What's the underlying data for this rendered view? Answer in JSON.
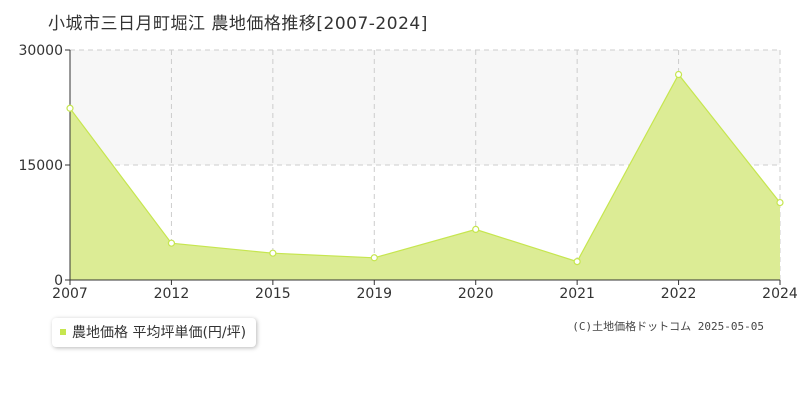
{
  "title": "小城市三日月町堀江 農地価格推移[2007-2024]",
  "legend": {
    "label": "農地価格 平均坪単価(円/坪)"
  },
  "copyright": "(C)土地価格ドットコム 2025-05-05",
  "colors": {
    "area_fill": "#dcec95",
    "line": "#c6e64f",
    "band": "#f7f7f7",
    "grid": "#cccccc",
    "axis": "#333333",
    "point_fill": "#ffffff"
  },
  "chart_data": {
    "type": "area",
    "categories": [
      "2007",
      "2012",
      "2015",
      "2019",
      "2020",
      "2021",
      "2022",
      "2024"
    ],
    "series": [
      {
        "name": "農地価格 平均坪単価(円/坪)",
        "values": [
          22400,
          4800,
          3500,
          2900,
          6600,
          2400,
          26800,
          10100
        ]
      }
    ],
    "yticks": [
      0,
      15000,
      30000
    ],
    "ylim": [
      0,
      30000
    ],
    "grid": true,
    "legend_position": "bottom-left"
  }
}
